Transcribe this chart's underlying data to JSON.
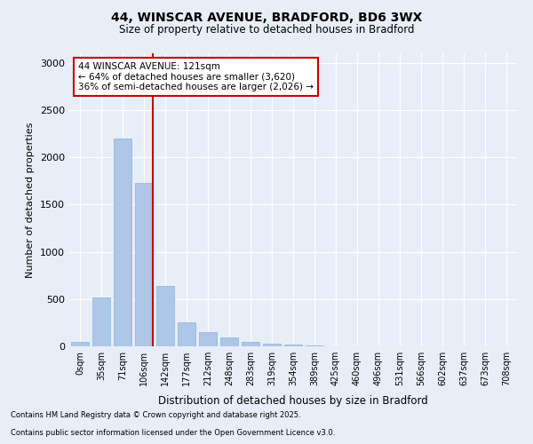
{
  "title_line1": "44, WINSCAR AVENUE, BRADFORD, BD6 3WX",
  "title_line2": "Size of property relative to detached houses in Bradford",
  "xlabel": "Distribution of detached houses by size in Bradford",
  "ylabel": "Number of detached properties",
  "categories": [
    "0sqm",
    "35sqm",
    "71sqm",
    "106sqm",
    "142sqm",
    "177sqm",
    "212sqm",
    "248sqm",
    "283sqm",
    "319sqm",
    "354sqm",
    "389sqm",
    "425sqm",
    "460sqm",
    "496sqm",
    "531sqm",
    "566sqm",
    "602sqm",
    "637sqm",
    "673sqm",
    "708sqm"
  ],
  "bar_values": [
    50,
    520,
    2200,
    1730,
    640,
    255,
    155,
    95,
    50,
    30,
    20,
    5,
    0,
    0,
    0,
    0,
    0,
    0,
    0,
    0,
    0
  ],
  "bar_color": "#aec6e8",
  "bar_edge_color": "#8ab4d8",
  "annotation_title": "44 WINSCAR AVENUE: 121sqm",
  "annotation_line2": "← 64% of detached houses are smaller (3,620)",
  "annotation_line3": "36% of semi-detached houses are larger (2,026) →",
  "annotation_box_color": "#ffffff",
  "annotation_box_edge_color": "#cc0000",
  "vline_color": "#cc0000",
  "vline_x": 3.42,
  "ylim": [
    0,
    3100
  ],
  "yticks": [
    0,
    500,
    1000,
    1500,
    2000,
    2500,
    3000
  ],
  "background_color": "#e8eef8",
  "grid_color": "#ffffff",
  "footer_line1": "Contains HM Land Registry data © Crown copyright and database right 2025.",
  "footer_line2": "Contains public sector information licensed under the Open Government Licence v3.0."
}
